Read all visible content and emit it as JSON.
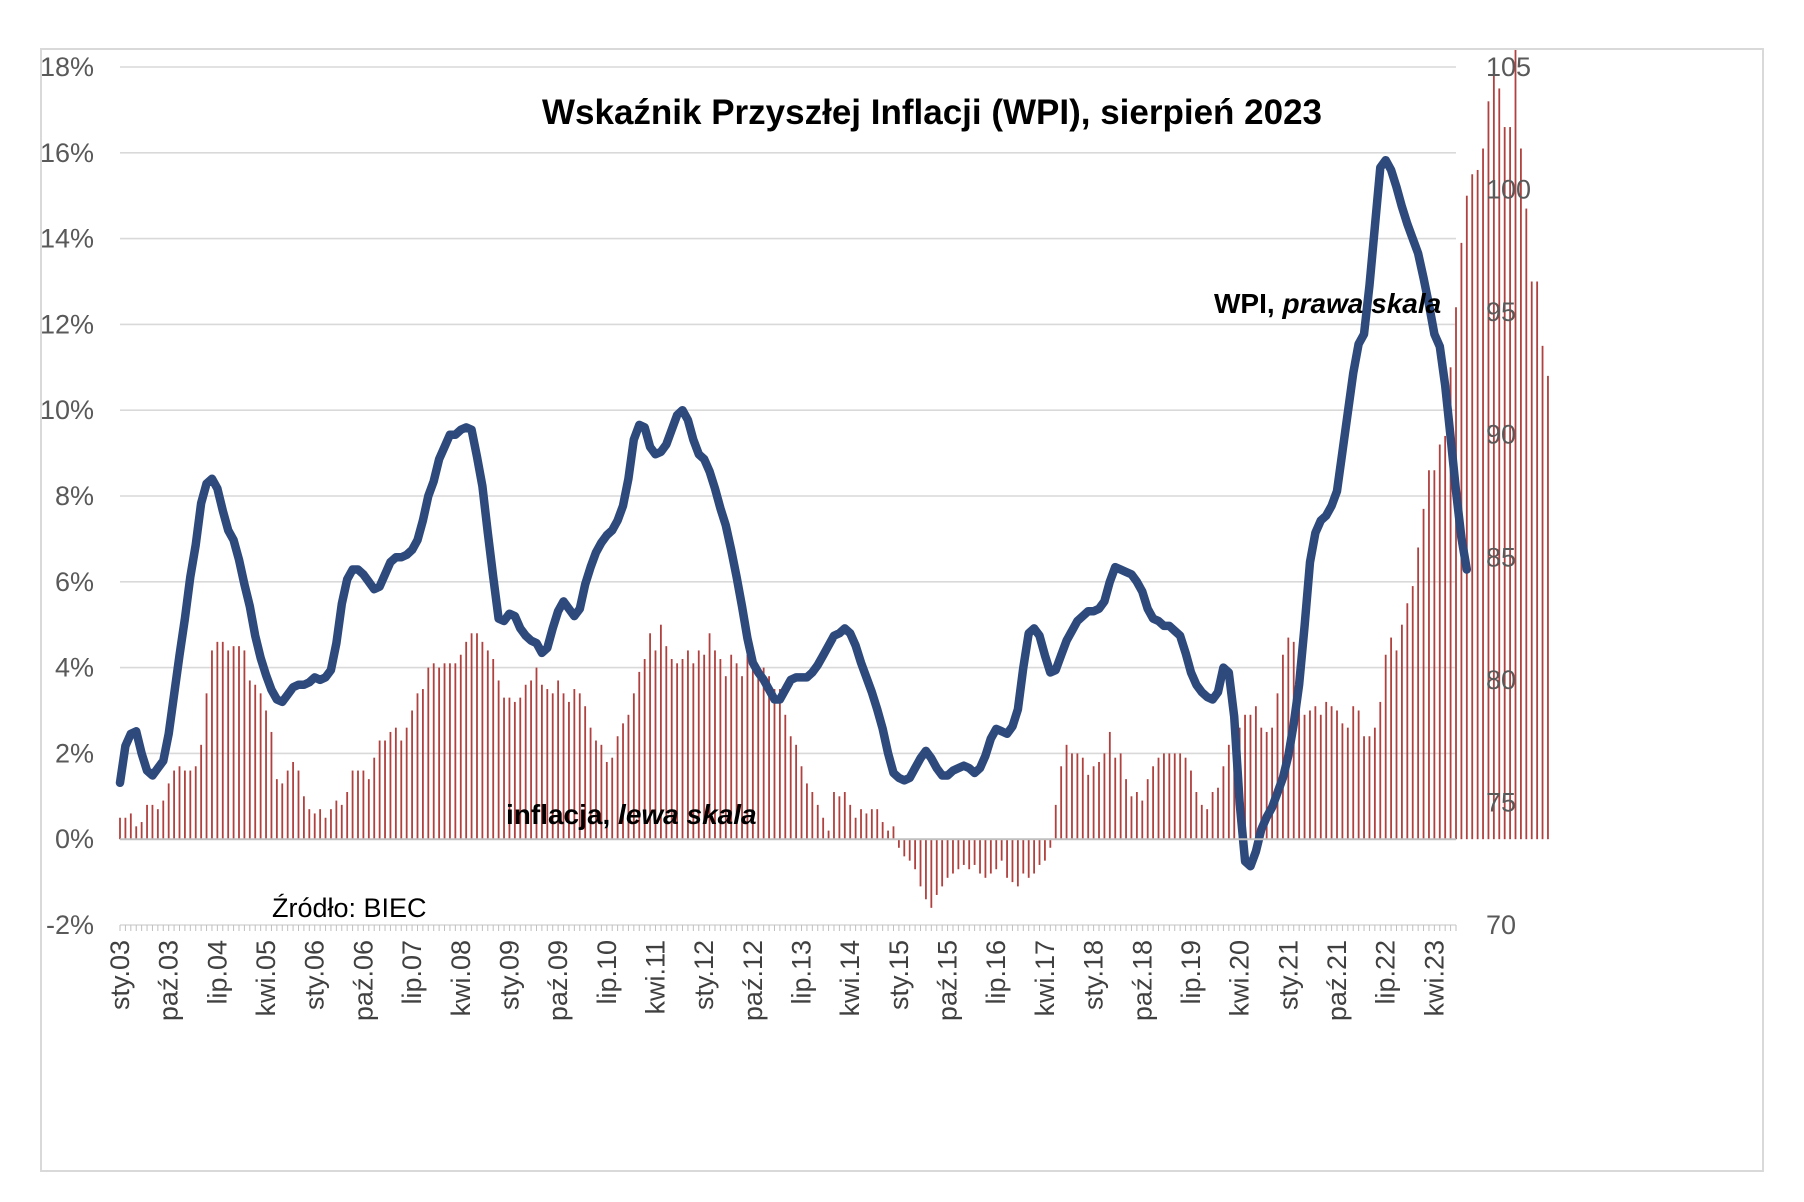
{
  "chart_data": {
    "type": "bar+line",
    "title": "Wskaźnik Przyszłej Inflacji (WPI), sierpień 2023",
    "source_note": "Źródło: BIEC",
    "line_label": {
      "name": "WPI",
      "scale": "prawa skala"
    },
    "bar_label": {
      "name": "inflacja",
      "scale": "lewa skala"
    },
    "x_range": [
      "2003-01",
      "2023-08"
    ],
    "x_tick_labels": [
      "sty.03",
      "paź.03",
      "lip.04",
      "kwi.05",
      "sty.06",
      "paź.06",
      "lip.07",
      "kwi.08",
      "sty.09",
      "paź.09",
      "lip.10",
      "kwi.11",
      "sty.12",
      "paź.12",
      "lip.13",
      "kwi.14",
      "sty.15",
      "paź.15",
      "lip.16",
      "kwi.17",
      "sty.18",
      "paź.18",
      "lip.19",
      "kwi.20",
      "sty.21",
      "paź.21",
      "lip.22",
      "kwi.23"
    ],
    "y_left": {
      "min": -2,
      "max": 18,
      "step": 2,
      "unit": "%",
      "ticks": [
        "-2%",
        "0%",
        "2%",
        "4%",
        "6%",
        "8%",
        "10%",
        "12%",
        "14%",
        "16%",
        "18%"
      ]
    },
    "y_right": {
      "min": 70,
      "max": 105,
      "step": 5,
      "ticks": [
        "70",
        "75",
        "80",
        "85",
        "90",
        "95",
        "100",
        "105"
      ]
    },
    "grid": "horizontal",
    "inflation_series": {
      "name": "inflacja",
      "axis": "left",
      "color": "#b0413e",
      "start": "2003-01",
      "frequency": "monthly",
      "values": [
        0.5,
        0.5,
        0.6,
        0.3,
        0.4,
        0.8,
        0.8,
        0.7,
        0.9,
        1.3,
        1.6,
        1.7,
        1.6,
        1.6,
        1.7,
        2.2,
        3.4,
        4.4,
        4.6,
        4.6,
        4.4,
        4.5,
        4.5,
        4.4,
        3.7,
        3.6,
        3.4,
        3.0,
        2.5,
        1.4,
        1.3,
        1.6,
        1.8,
        1.6,
        1.0,
        0.7,
        0.6,
        0.7,
        0.5,
        0.7,
        0.9,
        0.8,
        1.1,
        1.6,
        1.6,
        1.6,
        1.4,
        1.9,
        2.3,
        2.3,
        2.5,
        2.6,
        2.3,
        2.6,
        3.0,
        3.4,
        3.5,
        4.0,
        4.1,
        4.0,
        4.1,
        4.1,
        4.1,
        4.3,
        4.6,
        4.8,
        4.8,
        4.6,
        4.4,
        4.2,
        3.7,
        3.3,
        3.3,
        3.2,
        3.3,
        3.6,
        3.7,
        4.0,
        3.6,
        3.5,
        3.4,
        3.7,
        3.4,
        3.2,
        3.5,
        3.4,
        3.1,
        2.6,
        2.3,
        2.2,
        1.8,
        1.9,
        2.4,
        2.7,
        2.9,
        3.4,
        3.9,
        4.2,
        4.8,
        4.4,
        5.0,
        4.5,
        4.2,
        4.1,
        4.2,
        4.4,
        4.1,
        4.4,
        4.3,
        4.8,
        4.4,
        4.2,
        3.8,
        4.3,
        4.1,
        3.8,
        4.3,
        4.0,
        3.9,
        4.0,
        3.8,
        3.5,
        3.5,
        2.9,
        2.4,
        2.2,
        1.7,
        1.3,
        1.1,
        0.8,
        0.5,
        0.2,
        1.1,
        1.0,
        1.1,
        0.8,
        0.5,
        0.7,
        0.6,
        0.7,
        0.7,
        0.4,
        0.2,
        0.3,
        -0.2,
        -0.4,
        -0.5,
        -0.7,
        -1.1,
        -1.4,
        -1.6,
        -1.3,
        -1.1,
        -0.9,
        -0.8,
        -0.7,
        -0.6,
        -0.7,
        -0.6,
        -0.8,
        -0.9,
        -0.8,
        -0.7,
        -0.5,
        -0.9,
        -1.0,
        -1.1,
        -0.8,
        -0.9,
        -0.8,
        -0.6,
        -0.5,
        -0.2,
        0.8,
        1.7,
        2.2,
        2.0,
        2.0,
        1.9,
        1.5,
        1.7,
        1.8,
        2.0,
        2.5,
        1.9,
        2.0,
        1.4,
        1.0,
        1.1,
        0.9,
        1.4,
        1.7,
        1.9,
        2.0,
        2.0,
        2.0,
        2.0,
        1.9,
        1.6,
        1.1,
        0.8,
        0.7,
        1.1,
        1.2,
        1.7,
        2.2,
        2.3,
        2.6,
        2.9,
        2.9,
        3.1,
        2.6,
        2.5,
        2.6,
        3.4,
        4.3,
        4.7,
        4.6,
        3.4,
        2.9,
        3.0,
        3.1,
        2.9,
        3.2,
        3.1,
        3.0,
        2.7,
        2.6,
        3.1,
        3.0,
        2.4,
        2.4,
        2.6,
        3.2,
        4.3,
        4.7,
        4.4,
        5.0,
        5.5,
        5.9,
        6.8,
        7.7,
        8.6,
        8.6,
        9.2,
        9.4,
        11.0,
        12.4,
        13.9,
        15.0,
        15.5,
        15.6,
        16.1,
        17.2,
        17.9,
        17.5,
        16.6,
        16.6,
        18.4,
        16.1,
        14.7,
        13.0,
        13.0,
        11.5,
        10.8
      ]
    },
    "wpi_series": {
      "name": "WPI",
      "axis": "right",
      "color": "#2e4a7d",
      "start": "2003-01",
      "frequency": "monthly",
      "values": [
        75.8,
        77.3,
        77.8,
        77.9,
        77.0,
        76.3,
        76.1,
        76.4,
        76.7,
        77.8,
        79.4,
        81.0,
        82.5,
        84.2,
        85.5,
        87.2,
        88.0,
        88.2,
        87.8,
        86.9,
        86.1,
        85.7,
        84.9,
        83.9,
        83.0,
        81.8,
        80.9,
        80.2,
        79.6,
        79.2,
        79.1,
        79.4,
        79.7,
        79.8,
        79.8,
        79.9,
        80.1,
        80.0,
        80.1,
        80.4,
        81.5,
        83.1,
        84.1,
        84.5,
        84.5,
        84.3,
        84.0,
        83.7,
        83.8,
        84.3,
        84.8,
        85.0,
        85.0,
        85.1,
        85.3,
        85.7,
        86.5,
        87.5,
        88.1,
        89.0,
        89.5,
        90.0,
        90.0,
        90.2,
        90.3,
        90.2,
        89.1,
        87.9,
        86.0,
        84.2,
        82.5,
        82.4,
        82.7,
        82.6,
        82.1,
        81.8,
        81.6,
        81.5,
        81.1,
        81.3,
        82.1,
        82.8,
        83.2,
        82.9,
        82.6,
        82.9,
        83.9,
        84.6,
        85.2,
        85.6,
        85.9,
        86.1,
        86.5,
        87.1,
        88.2,
        89.8,
        90.4,
        90.3,
        89.5,
        89.2,
        89.3,
        89.6,
        90.2,
        90.8,
        91.0,
        90.6,
        89.8,
        89.2,
        89.0,
        88.5,
        87.8,
        87.0,
        86.3,
        85.3,
        84.2,
        83.0,
        81.7,
        80.7,
        80.3,
        80.0,
        79.6,
        79.2,
        79.2,
        79.6,
        80.0,
        80.1,
        80.1,
        80.1,
        80.3,
        80.6,
        81.0,
        81.4,
        81.8,
        81.9,
        82.1,
        81.9,
        81.4,
        80.7,
        80.1,
        79.5,
        78.8,
        78.0,
        77.0,
        76.2,
        76.0,
        75.9,
        76.0,
        76.4,
        76.8,
        77.1,
        76.8,
        76.4,
        76.1,
        76.1,
        76.3,
        76.4,
        76.5,
        76.4,
        76.2,
        76.4,
        76.9,
        77.6,
        78.0,
        77.9,
        77.8,
        78.1,
        78.8,
        80.5,
        81.9,
        82.1,
        81.8,
        81.0,
        80.3,
        80.4,
        81.0,
        81.6,
        82.0,
        82.4,
        82.6,
        82.8,
        82.8,
        82.9,
        83.2,
        84.0,
        84.6,
        84.5,
        84.4,
        84.3,
        84.0,
        83.6,
        82.9,
        82.5,
        82.4,
        82.2,
        82.2,
        82.0,
        81.8,
        81.1,
        80.3,
        79.8,
        79.5,
        79.3,
        79.2,
        79.5,
        80.5,
        80.3,
        78.5,
        75.0,
        72.6,
        72.4,
        73.0,
        73.9,
        74.4,
        74.8,
        75.4,
        76.0,
        76.9,
        78.2,
        79.8,
        82.2,
        84.8,
        86.0,
        86.5,
        86.7,
        87.1,
        87.7,
        89.3,
        90.9,
        92.5,
        93.7,
        94.1,
        96.1,
        98.5,
        100.9,
        101.2,
        100.8,
        100.1,
        99.3,
        98.6,
        98.0,
        97.4,
        96.4,
        95.3,
        94.1,
        93.6,
        92.0,
        89.9,
        87.7,
        85.8,
        84.5
      ]
    }
  }
}
